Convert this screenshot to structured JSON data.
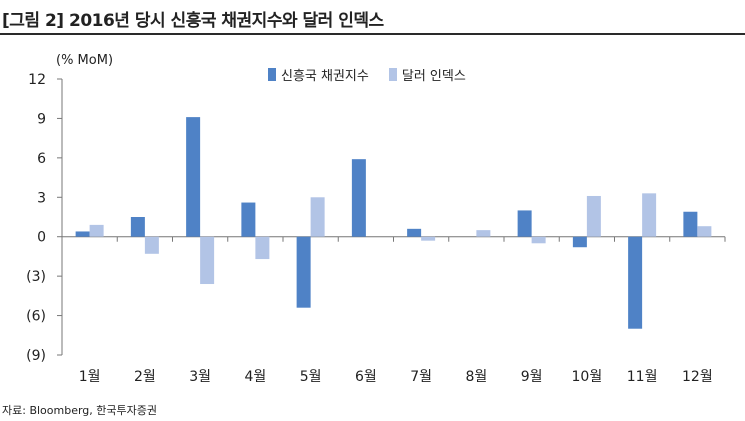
{
  "title": "[그림 2] 2016년 당시 신흥국 채권지수와 달러 인덱스",
  "source": "자료: Bloomberg, 한국투자증권",
  "colors": {
    "series_1": "#4f82c6",
    "series_2": "#b2c4e6",
    "axis": "#777777",
    "text": "#222222"
  },
  "chart_data": {
    "type": "bar",
    "title": "",
    "xlabel": "",
    "ylabel": "(% MoM)",
    "ylim": [
      -9,
      12
    ],
    "yticks": [
      12,
      9,
      6,
      3,
      0,
      -3,
      -6,
      -9
    ],
    "ytick_labels": [
      "12",
      "9",
      "6",
      "3",
      "0",
      "(3)",
      "(6)",
      "(9)"
    ],
    "categories": [
      "1월",
      "2월",
      "3월",
      "4월",
      "5월",
      "6월",
      "7월",
      "8월",
      "9월",
      "10월",
      "11월",
      "12월"
    ],
    "legend_position": "top",
    "grid": false,
    "series": [
      {
        "name": "신흥국 채권지수",
        "values": [
          0.4,
          1.5,
          9.1,
          2.6,
          -5.4,
          5.9,
          0.6,
          0.0,
          2.0,
          -0.8,
          -7.0,
          1.9
        ]
      },
      {
        "name": "달러 인덱스",
        "values": [
          0.9,
          -1.3,
          -3.6,
          -1.7,
          3.0,
          0.0,
          -0.3,
          0.5,
          -0.5,
          3.1,
          3.3,
          0.8
        ]
      }
    ]
  }
}
